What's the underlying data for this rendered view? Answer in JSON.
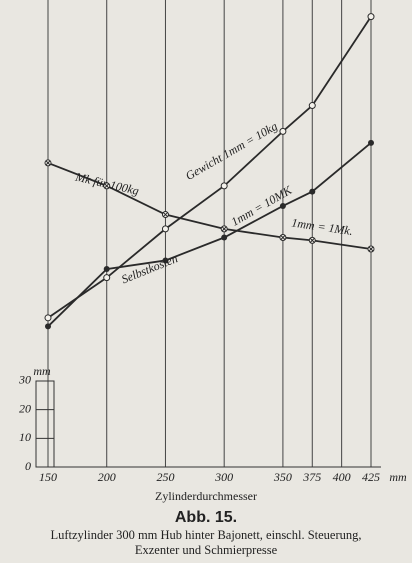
{
  "chart_data": {
    "type": "line",
    "x_title": "Zylinderdurchmesser",
    "x_unit": "mm",
    "y_unit": "mm",
    "figure_label": "Abb. 15.",
    "caption": [
      "Luftzylinder 300 mm Hub hinter Bajonett, einschl. Steuerung,",
      "Exzenter und Schmierpresse"
    ],
    "x": [
      150,
      200,
      250,
      300,
      350,
      375,
      425
    ],
    "xlim": [
      150,
      425
    ],
    "xticks": [
      150,
      200,
      250,
      300,
      350,
      375,
      400,
      425
    ],
    "ylim": [
      0,
      160
    ],
    "yticks": [
      0,
      10,
      20,
      30
    ],
    "grid": true,
    "series": [
      {
        "name": "Gewicht 1mm = 10kg",
        "color": "#2a2a2a",
        "marker": "open",
        "values": [
          52,
          66,
          83,
          98,
          117,
          126,
          157
        ]
      },
      {
        "name": "Selbstkosten",
        "color": "#2a2a2a",
        "marker": "filled",
        "values": [
          49,
          69,
          72,
          80,
          91,
          96,
          113
        ]
      },
      {
        "name": "Mk für 100kg",
        "color": "#2a2a2a",
        "marker": "crossed",
        "values": [
          106,
          98,
          88,
          83,
          80,
          79,
          76
        ]
      }
    ],
    "annotations": [
      "1mm = 10MK",
      "1mm = 1Mk."
    ]
  }
}
